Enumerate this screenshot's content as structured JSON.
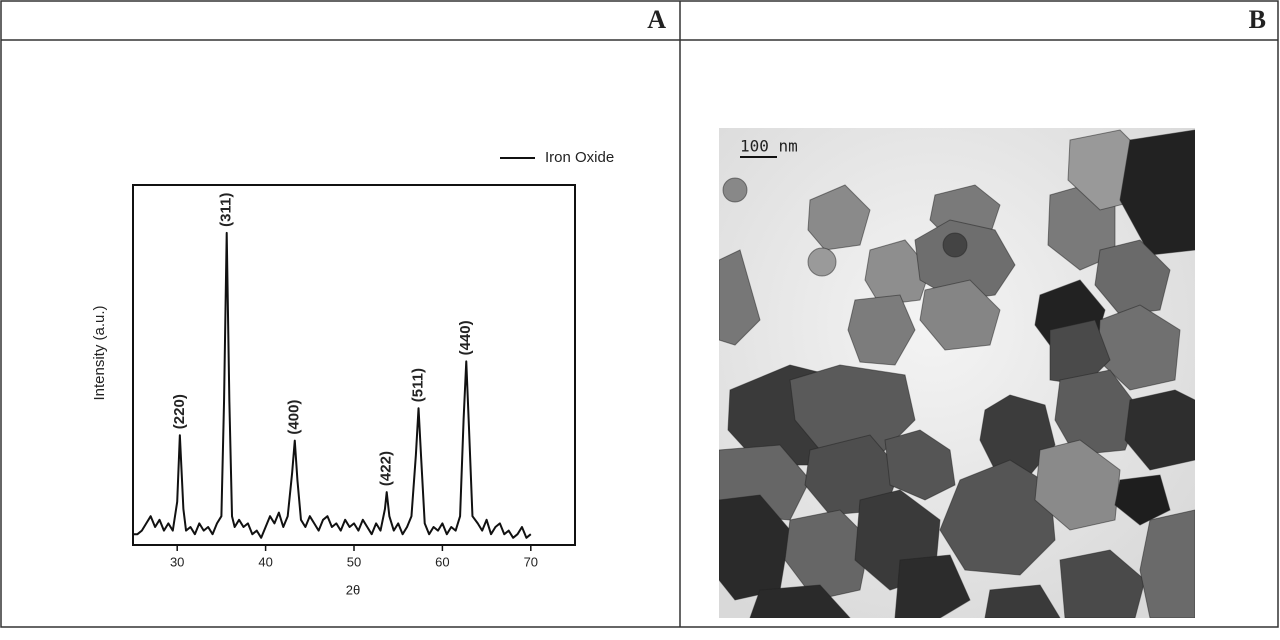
{
  "panels": [
    {
      "label": "A"
    },
    {
      "label": "B"
    }
  ],
  "image": {
    "scale_bar": "100 nm"
  },
  "chart_data": {
    "type": "line",
    "x_label": "2θ",
    "y_label": "Intensity (a.u.)",
    "xlim": [
      25,
      75
    ],
    "ylim": [
      0,
      100
    ],
    "xticks": [
      30,
      40,
      50,
      60,
      70
    ],
    "legend": "upper right",
    "x": [
      25,
      25.5,
      26,
      26.5,
      27,
      27.5,
      28,
      28.5,
      29,
      29.5,
      30,
      30.3,
      30.7,
      31,
      31.5,
      32,
      32.5,
      33,
      33.5,
      34,
      34.5,
      35,
      35.3,
      35.6,
      35.9,
      36.2,
      36.5,
      37,
      37.5,
      38,
      38.5,
      39,
      39.5,
      40,
      40.5,
      41,
      41.5,
      42,
      42.5,
      43,
      43.3,
      43.6,
      44,
      44.5,
      45,
      45.5,
      46,
      46.5,
      47,
      47.5,
      48,
      48.5,
      49,
      49.5,
      50,
      50.5,
      51,
      51.5,
      52,
      52.5,
      53,
      53.5,
      53.7,
      54,
      54.5,
      55,
      55.5,
      56,
      56.5,
      57,
      57.3,
      57.6,
      58,
      58.5,
      59,
      59.5,
      60,
      60.5,
      61,
      61.5,
      62,
      62.4,
      62.7,
      63,
      63.4,
      64,
      64.5,
      65,
      65.5,
      66,
      66.5,
      67,
      67.5,
      68,
      68.5,
      69,
      69.5,
      70
    ],
    "series": [
      {
        "name": "Iron Oxide",
        "color": "#111111",
        "values": [
          3,
          3,
          4,
          6,
          8,
          5,
          7,
          4,
          6,
          4,
          12,
          30.5,
          10,
          4,
          5,
          3,
          6,
          4,
          5,
          3,
          6,
          8,
          40,
          86.7,
          40,
          8,
          5,
          7,
          5,
          6,
          3,
          4,
          2,
          5,
          8,
          6,
          9,
          5,
          8,
          20,
          29,
          18,
          7,
          5,
          8,
          6,
          4,
          7,
          8,
          5,
          6,
          4,
          7,
          5,
          6,
          4,
          7,
          5,
          3,
          6,
          4,
          10,
          14.7,
          8,
          4,
          6,
          3,
          5,
          8,
          25,
          38,
          24,
          6,
          3,
          5,
          4,
          6,
          3,
          5,
          4,
          8,
          35,
          51,
          33,
          8,
          6,
          4,
          7,
          3,
          5,
          6,
          3,
          4,
          2,
          3,
          5,
          2,
          3
        ]
      }
    ],
    "annotations": [
      {
        "text": "(220)",
        "x": 30.3
      },
      {
        "text": "(311)",
        "x": 35.6
      },
      {
        "text": "(400)",
        "x": 43.3
      },
      {
        "text": "(422)",
        "x": 53.7
      },
      {
        "text": "(511)",
        "x": 57.3
      },
      {
        "text": "(440)",
        "x": 62.7
      }
    ]
  }
}
